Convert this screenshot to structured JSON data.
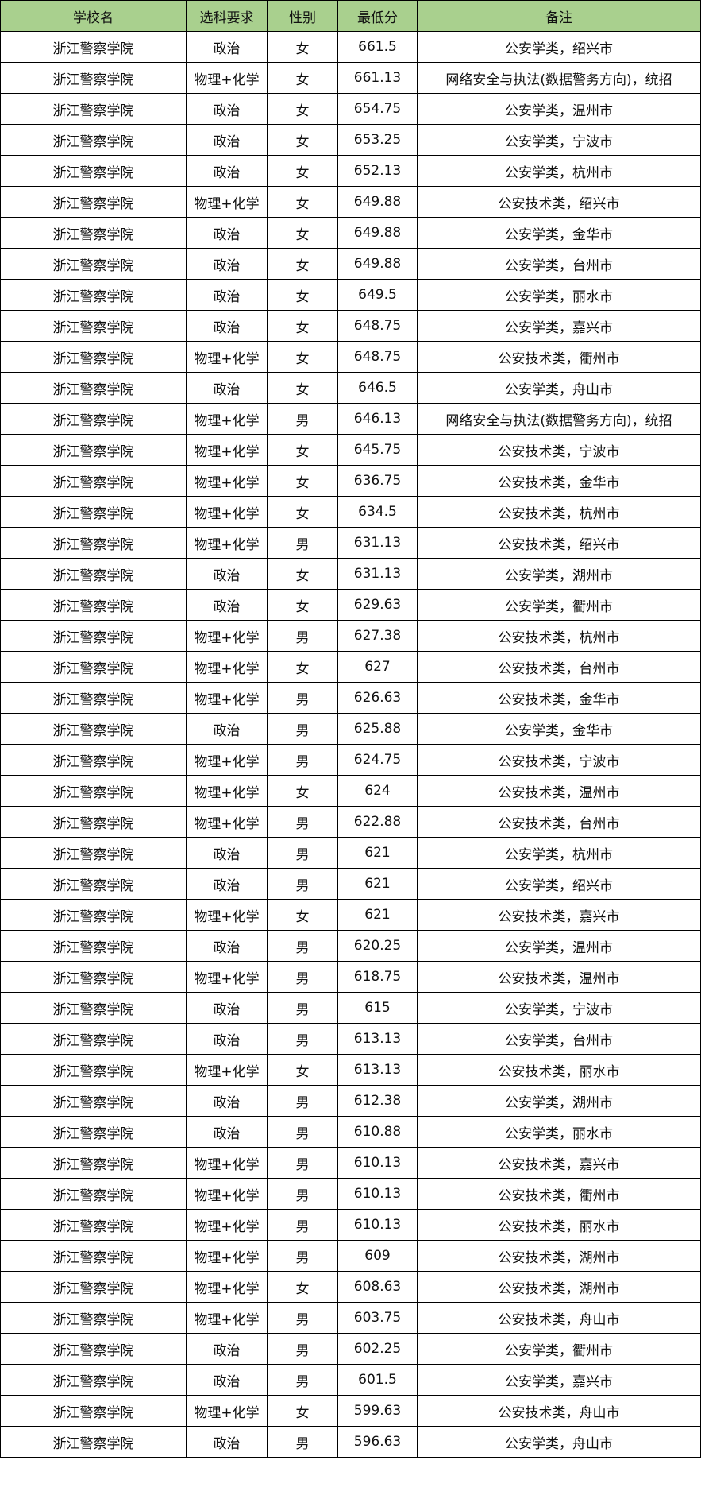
{
  "header_color": "#a9d08e",
  "columns": [
    "学校名",
    "选科要求",
    "性别",
    "最低分",
    "备注"
  ],
  "rows": [
    [
      "浙江警察学院",
      "政治",
      "女",
      "661.5",
      "公安学类，绍兴市"
    ],
    [
      "浙江警察学院",
      "物理+化学",
      "女",
      "661.13",
      "网络安全与执法(数据警务方向)，统招"
    ],
    [
      "浙江警察学院",
      "政治",
      "女",
      "654.75",
      "公安学类，温州市"
    ],
    [
      "浙江警察学院",
      "政治",
      "女",
      "653.25",
      "公安学类，宁波市"
    ],
    [
      "浙江警察学院",
      "政治",
      "女",
      "652.13",
      "公安学类，杭州市"
    ],
    [
      "浙江警察学院",
      "物理+化学",
      "女",
      "649.88",
      "公安技术类，绍兴市"
    ],
    [
      "浙江警察学院",
      "政治",
      "女",
      "649.88",
      "公安学类，金华市"
    ],
    [
      "浙江警察学院",
      "政治",
      "女",
      "649.88",
      "公安学类，台州市"
    ],
    [
      "浙江警察学院",
      "政治",
      "女",
      "649.5",
      "公安学类，丽水市"
    ],
    [
      "浙江警察学院",
      "政治",
      "女",
      "648.75",
      "公安学类，嘉兴市"
    ],
    [
      "浙江警察学院",
      "物理+化学",
      "女",
      "648.75",
      "公安技术类，衢州市"
    ],
    [
      "浙江警察学院",
      "政治",
      "女",
      "646.5",
      "公安学类，舟山市"
    ],
    [
      "浙江警察学院",
      "物理+化学",
      "男",
      "646.13",
      "网络安全与执法(数据警务方向)，统招"
    ],
    [
      "浙江警察学院",
      "物理+化学",
      "女",
      "645.75",
      "公安技术类，宁波市"
    ],
    [
      "浙江警察学院",
      "物理+化学",
      "女",
      "636.75",
      "公安技术类，金华市"
    ],
    [
      "浙江警察学院",
      "物理+化学",
      "女",
      "634.5",
      "公安技术类，杭州市"
    ],
    [
      "浙江警察学院",
      "物理+化学",
      "男",
      "631.13",
      "公安技术类，绍兴市"
    ],
    [
      "浙江警察学院",
      "政治",
      "女",
      "631.13",
      "公安学类，湖州市"
    ],
    [
      "浙江警察学院",
      "政治",
      "女",
      "629.63",
      "公安学类，衢州市"
    ],
    [
      "浙江警察学院",
      "物理+化学",
      "男",
      "627.38",
      "公安技术类，杭州市"
    ],
    [
      "浙江警察学院",
      "物理+化学",
      "女",
      "627",
      "公安技术类，台州市"
    ],
    [
      "浙江警察学院",
      "物理+化学",
      "男",
      "626.63",
      "公安技术类，金华市"
    ],
    [
      "浙江警察学院",
      "政治",
      "男",
      "625.88",
      "公安学类，金华市"
    ],
    [
      "浙江警察学院",
      "物理+化学",
      "男",
      "624.75",
      "公安技术类，宁波市"
    ],
    [
      "浙江警察学院",
      "物理+化学",
      "女",
      "624",
      "公安技术类，温州市"
    ],
    [
      "浙江警察学院",
      "物理+化学",
      "男",
      "622.88",
      "公安技术类，台州市"
    ],
    [
      "浙江警察学院",
      "政治",
      "男",
      "621",
      "公安学类，杭州市"
    ],
    [
      "浙江警察学院",
      "政治",
      "男",
      "621",
      "公安学类，绍兴市"
    ],
    [
      "浙江警察学院",
      "物理+化学",
      "女",
      "621",
      "公安技术类，嘉兴市"
    ],
    [
      "浙江警察学院",
      "政治",
      "男",
      "620.25",
      "公安学类，温州市"
    ],
    [
      "浙江警察学院",
      "物理+化学",
      "男",
      "618.75",
      "公安技术类，温州市"
    ],
    [
      "浙江警察学院",
      "政治",
      "男",
      "615",
      "公安学类，宁波市"
    ],
    [
      "浙江警察学院",
      "政治",
      "男",
      "613.13",
      "公安学类，台州市"
    ],
    [
      "浙江警察学院",
      "物理+化学",
      "女",
      "613.13",
      "公安技术类，丽水市"
    ],
    [
      "浙江警察学院",
      "政治",
      "男",
      "612.38",
      "公安学类，湖州市"
    ],
    [
      "浙江警察学院",
      "政治",
      "男",
      "610.88",
      "公安学类，丽水市"
    ],
    [
      "浙江警察学院",
      "物理+化学",
      "男",
      "610.13",
      "公安技术类，嘉兴市"
    ],
    [
      "浙江警察学院",
      "物理+化学",
      "男",
      "610.13",
      "公安技术类，衢州市"
    ],
    [
      "浙江警察学院",
      "物理+化学",
      "男",
      "610.13",
      "公安技术类，丽水市"
    ],
    [
      "浙江警察学院",
      "物理+化学",
      "男",
      "609",
      "公安技术类，湖州市"
    ],
    [
      "浙江警察学院",
      "物理+化学",
      "女",
      "608.63",
      "公安技术类，湖州市"
    ],
    [
      "浙江警察学院",
      "物理+化学",
      "男",
      "603.75",
      "公安技术类，舟山市"
    ],
    [
      "浙江警察学院",
      "政治",
      "男",
      "602.25",
      "公安学类，衢州市"
    ],
    [
      "浙江警察学院",
      "政治",
      "男",
      "601.5",
      "公安学类，嘉兴市"
    ],
    [
      "浙江警察学院",
      "物理+化学",
      "女",
      "599.63",
      "公安技术类，舟山市"
    ],
    [
      "浙江警察学院",
      "政治",
      "男",
      "596.63",
      "公安学类，舟山市"
    ]
  ]
}
